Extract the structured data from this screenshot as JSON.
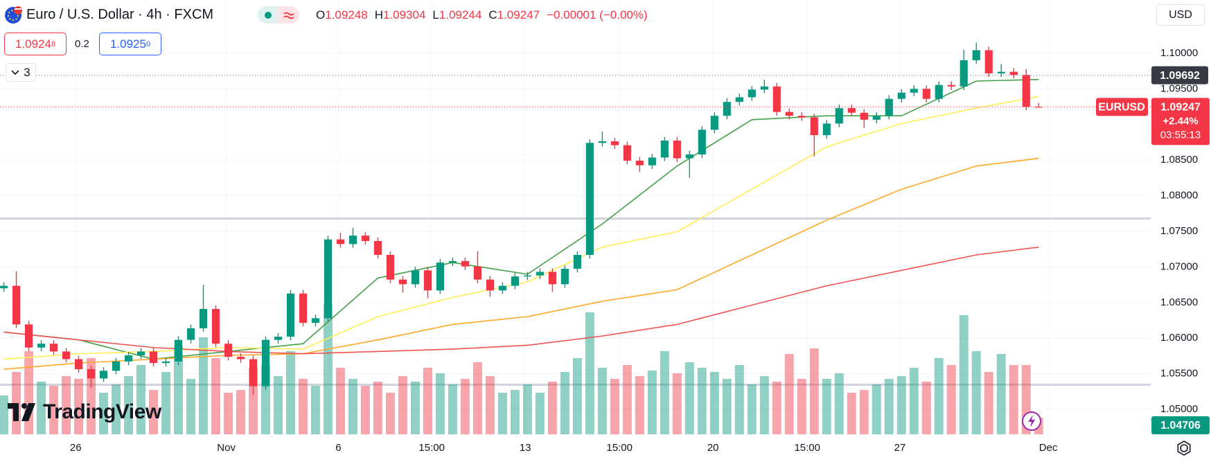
{
  "header": {
    "symbol": "Euro / U.S. Dollar · 4h · FXCM",
    "open_label": "O",
    "high_label": "H",
    "low_label": "L",
    "close_label": "C",
    "change": "−0.00001 (−0.00%)",
    "bid": {
      "main": "1.0924",
      "pip": "8"
    },
    "spread": "0.2",
    "ask": {
      "main": "1.0925",
      "pip": "0"
    },
    "indicators_count": "3",
    "currency": "USD",
    "logo": "TradingView"
  },
  "chart_data": {
    "type": "candlestick",
    "open": [
      1.067,
      1.06735,
      1.06193,
      1.05868,
      1.05922,
      1.05813,
      1.05705,
      1.05564,
      1.05434,
      1.05542,
      1.05672,
      1.05759,
      1.05813,
      1.05651,
      1.05672,
      1.05976,
      1.06139,
      1.0641,
      1.05922,
      1.05738,
      1.05705,
      1.05325,
      1.05976,
      1.0602,
      1.06627,
      1.06215,
      1.0628,
      1.07386,
      1.07321,
      1.0744,
      1.07364,
      1.07169,
      1.06822,
      1.06757,
      1.06952,
      1.0667,
      1.07061,
      1.07082,
      1.07007,
      1.06822,
      1.0667,
      1.06735,
      1.06866,
      1.0688,
      1.06931,
      1.06757,
      1.06974,
      1.07169,
      1.08742,
      1.08764,
      1.08709,
      1.08492,
      1.08427,
      1.08536,
      1.08774,
      1.08525,
      1.08579,
      1.08926,
      1.09122,
      1.09317,
      1.09382,
      1.0949,
      1.09534,
      1.09176,
      1.09122,
      1.091,
      1.0885,
      1.09013,
      1.0923,
      1.09165,
      1.09067,
      1.09122,
      1.0936,
      1.09447,
      1.09501,
      1.0936,
      1.09555,
      1.09534,
      1.09902,
      1.10043,
      1.09718,
      1.0974,
      1.09696,
      1.09248
    ],
    "high": [
      1.06785,
      1.0694,
      1.06243,
      1.05972,
      1.05972,
      1.05863,
      1.05755,
      1.05614,
      1.05592,
      1.05722,
      1.05809,
      1.05863,
      1.05863,
      1.05722,
      1.06026,
      1.06189,
      1.0675,
      1.0646,
      1.05972,
      1.05788,
      1.05755,
      1.06026,
      1.0607,
      1.06677,
      1.06677,
      1.0633,
      1.07436,
      1.0748,
      1.0755,
      1.0749,
      1.07414,
      1.07219,
      1.06872,
      1.07002,
      1.07002,
      1.07111,
      1.07132,
      1.07132,
      1.0722,
      1.06872,
      1.06785,
      1.06916,
      1.0693,
      1.06981,
      1.06981,
      1.07024,
      1.07219,
      1.08792,
      1.089,
      1.08814,
      1.08759,
      1.08542,
      1.08586,
      1.08824,
      1.08824,
      1.08629,
      1.08976,
      1.09172,
      1.09367,
      1.09432,
      1.0954,
      1.0963,
      1.09584,
      1.09226,
      1.09172,
      1.0915,
      1.09063,
      1.0928,
      1.0928,
      1.09215,
      1.09172,
      1.0941,
      1.09497,
      1.09551,
      1.09551,
      1.09605,
      1.09605,
      1.1005,
      1.1015,
      1.10093,
      1.0985,
      1.0979,
      1.0978,
      1.09304
    ],
    "low": [
      1.0665,
      1.06143,
      1.05818,
      1.05818,
      1.05763,
      1.05655,
      1.05514,
      1.053,
      1.05384,
      1.05492,
      1.05622,
      1.05709,
      1.05601,
      1.05601,
      1.05622,
      1.05926,
      1.06089,
      1.05872,
      1.05688,
      1.05655,
      1.052,
      1.05275,
      1.05926,
      1.0597,
      1.06165,
      1.06165,
      1.0623,
      1.07271,
      1.07271,
      1.07314,
      1.07119,
      1.06772,
      1.0664,
      1.06707,
      1.0656,
      1.0662,
      1.07011,
      1.06957,
      1.06772,
      1.0658,
      1.0662,
      1.06685,
      1.06816,
      1.0683,
      1.0665,
      1.06707,
      1.06924,
      1.07119,
      1.08692,
      1.08659,
      1.08442,
      1.0833,
      1.08377,
      1.08486,
      1.08475,
      1.0825,
      1.08529,
      1.08876,
      1.09072,
      1.09267,
      1.09332,
      1.0944,
      1.09126,
      1.09072,
      1.0905,
      1.0855,
      1.088,
      1.08963,
      1.09115,
      1.0895,
      1.09017,
      1.09072,
      1.0931,
      1.09397,
      1.0931,
      1.0931,
      1.09484,
      1.09484,
      1.09852,
      1.09668,
      1.09668,
      1.09646,
      1.092,
      1.09244
    ],
    "close": [
      1.06735,
      1.06193,
      1.05868,
      1.05922,
      1.05813,
      1.05705,
      1.05564,
      1.05434,
      1.05542,
      1.05672,
      1.05759,
      1.05813,
      1.05651,
      1.05672,
      1.05976,
      1.06139,
      1.0641,
      1.05922,
      1.05738,
      1.05705,
      1.05325,
      1.05976,
      1.0602,
      1.06627,
      1.06215,
      1.0628,
      1.07386,
      1.07321,
      1.0744,
      1.07364,
      1.07169,
      1.06822,
      1.06757,
      1.06952,
      1.0667,
      1.07061,
      1.07082,
      1.07007,
      1.06822,
      1.0667,
      1.06735,
      1.06866,
      1.0688,
      1.06931,
      1.06757,
      1.06974,
      1.07169,
      1.08742,
      1.08764,
      1.08709,
      1.08492,
      1.08427,
      1.08536,
      1.08774,
      1.08525,
      1.08579,
      1.08926,
      1.09122,
      1.09317,
      1.09382,
      1.0949,
      1.09534,
      1.09176,
      1.09122,
      1.091,
      1.0885,
      1.09013,
      1.0923,
      1.09165,
      1.09067,
      1.09122,
      1.0936,
      1.09447,
      1.09501,
      1.0936,
      1.09555,
      1.09534,
      1.09902,
      1.10043,
      1.09718,
      1.0974,
      1.09696,
      1.09248,
      1.09247
    ],
    "volume": [
      28,
      45,
      60,
      38,
      35,
      42,
      40,
      55,
      30,
      36,
      42,
      50,
      32,
      45,
      64,
      40,
      70,
      55,
      30,
      32,
      48,
      50,
      42,
      60,
      40,
      35,
      94,
      48,
      40,
      35,
      38,
      30,
      42,
      38,
      48,
      44,
      36,
      40,
      52,
      42,
      30,
      32,
      36,
      30,
      38,
      45,
      55,
      88,
      48,
      40,
      50,
      42,
      46,
      60,
      44,
      52,
      48,
      45,
      40,
      50,
      36,
      42,
      38,
      58,
      40,
      62,
      40,
      44,
      30,
      32,
      36,
      40,
      42,
      48,
      38,
      55,
      50,
      86,
      60,
      45,
      58,
      50,
      50,
      12
    ],
    "volume_lim": [
      0,
      100
    ],
    "up_color": "#089981",
    "down_color": "#f23645",
    "xlim": [
      -0.31,
      91.99
    ],
    "xticks": [
      {
        "value": 5.76,
        "label": "26"
      },
      {
        "value": 17.84,
        "label": "Nov"
      },
      {
        "value": 26.83,
        "label": "6"
      },
      {
        "value": 34.32,
        "label": "15:00"
      },
      {
        "value": 41.82,
        "label": "13"
      },
      {
        "value": 49.38,
        "label": "15:00"
      },
      {
        "value": 56.88,
        "label": "20"
      },
      {
        "value": 64.44,
        "label": "15:00"
      },
      {
        "value": 71.87,
        "label": "27"
      },
      {
        "value": 83.77,
        "label": "Dec"
      }
    ],
    "ylim": [
      1.0465,
      1.10748
    ],
    "yticks": [
      {
        "value": 1.05,
        "label": "1.05000"
      },
      {
        "value": 1.055,
        "label": "1.05500"
      },
      {
        "value": 1.06,
        "label": "1.06000"
      },
      {
        "value": 1.065,
        "label": "1.06500"
      },
      {
        "value": 1.07,
        "label": "1.07000"
      },
      {
        "value": 1.075,
        "label": "1.07500"
      },
      {
        "value": 1.08,
        "label": "1.08000"
      },
      {
        "value": 1.085,
        "label": "1.08500"
      },
      {
        "value": 1.095,
        "label": "1.09500"
      },
      {
        "value": 1.1,
        "label": "1.10000"
      }
    ],
    "grid": true,
    "moving_averages": {
      "x": [
        0,
        6,
        12,
        18,
        24,
        30,
        36,
        42,
        48,
        54,
        60,
        66,
        72,
        78,
        83
      ],
      "series": [
        {
          "color": "#43a047",
          "values": [
            1.06085,
            1.05976,
            1.05705,
            1.05813,
            1.05922,
            1.06844,
            1.07061,
            1.06898,
            1.07603,
            1.08417,
            1.09067,
            1.09122,
            1.09122,
            1.0961,
            1.09631
          ]
        },
        {
          "color": "#ffee58",
          "values": [
            1.05705,
            1.05781,
            1.05813,
            1.05868,
            1.05846,
            1.06302,
            1.06573,
            1.0679,
            1.07278,
            1.07495,
            1.08091,
            1.08688,
            1.09013,
            1.0923,
            1.09393
          ]
        },
        {
          "color": "#ffa726",
          "values": [
            1.05564,
            1.05651,
            1.05705,
            1.05759,
            1.05781,
            1.05976,
            1.06193,
            1.06302,
            1.06518,
            1.06681,
            1.07169,
            1.07657,
            1.08091,
            1.08417,
            1.08525
          ]
        },
        {
          "color": "#ef5350",
          "values": [
            1.06085,
            1.05976,
            1.05868,
            1.05813,
            1.05781,
            1.05813,
            1.05846,
            1.059,
            1.0603,
            1.06193,
            1.06464,
            1.06735,
            1.06952,
            1.07169,
            1.07278
          ]
        }
      ]
    },
    "hlines": [
      {
        "value": 1.07679,
        "color": "#d1d4dc"
      },
      {
        "value": 1.05347,
        "color": "#d1d4dc"
      }
    ],
    "price_line": 1.09692,
    "symbol_label": "EURUSD",
    "change_pct": "+2.44%",
    "countdown": "03:55:13",
    "bottom_label": 1.04706
  }
}
